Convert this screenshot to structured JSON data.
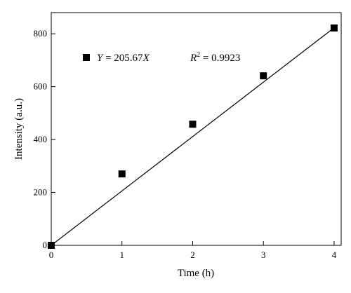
{
  "chart_data": {
    "type": "scatter",
    "title": "",
    "xlabel": "Time (h)",
    "ylabel": "Intensity (a.u.)",
    "xlim": [
      0,
      4.1
    ],
    "ylim": [
      0,
      880
    ],
    "xticks": [
      0,
      1,
      2,
      3,
      4
    ],
    "yticks": [
      0,
      200,
      400,
      600,
      800
    ],
    "xtick_labels": [
      "0",
      "1",
      "2",
      "3",
      "4"
    ],
    "ytick_labels": [
      "0",
      "200",
      "400",
      "600",
      "800"
    ],
    "grid": false,
    "legend_position": "top-left",
    "series": [
      {
        "marker": "square",
        "color": "#000000",
        "x": [
          0,
          1,
          2,
          3,
          4
        ],
        "y": [
          0,
          270,
          458,
          641,
          822
        ]
      }
    ],
    "fit_line": {
      "slope": 205.67,
      "intercept": 0,
      "x_range": [
        0,
        4
      ],
      "color": "#000000"
    },
    "annotations": {
      "equation_prefix": "Y",
      "equation_rest": " = 205.67",
      "equation_suffix": "X",
      "r2_prefix": "R",
      "r2_exponent": "2",
      "r2_rest": " = 0.9923"
    }
  }
}
